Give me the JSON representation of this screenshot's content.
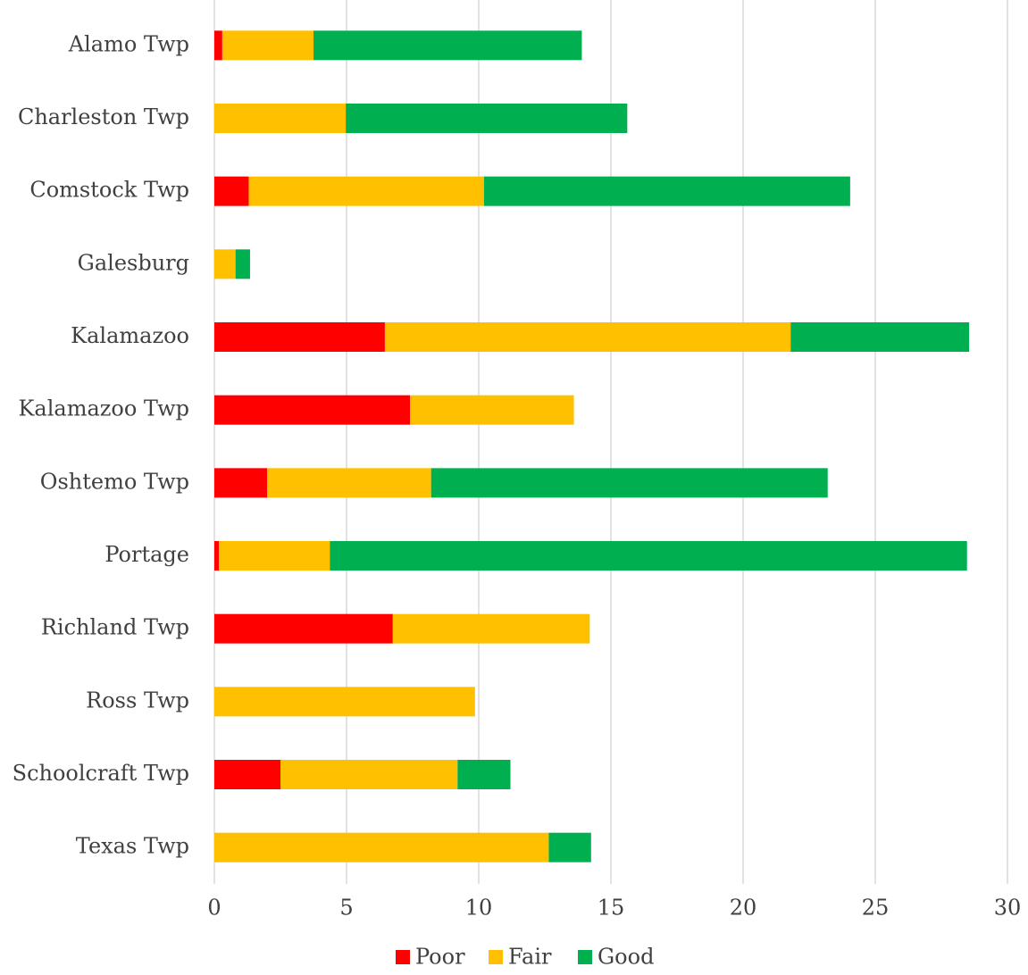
{
  "chart_data": {
    "type": "stacked_bar_horizontal",
    "categories": [
      "Alamo Twp",
      "Charleston Twp",
      "Comstock Twp",
      "Galesburg",
      "Kalamazoo",
      "Kalamazoo Twp",
      "Oshtemo Twp",
      "Portage",
      "Richland Twp",
      "Ross Twp",
      "Schoolcraft Twp",
      "Texas Twp"
    ],
    "series": [
      {
        "name": "Poor",
        "color": "#ff0000",
        "values": [
          0.3,
          0,
          1.3,
          0,
          6.45,
          7.4,
          2.0,
          0.17,
          6.75,
          0,
          2.5,
          0
        ]
      },
      {
        "name": "Fair",
        "color": "#ffc000",
        "values": [
          3.45,
          4.97,
          8.9,
          0.8,
          15.35,
          6.2,
          6.2,
          4.2,
          7.45,
          9.86,
          6.7,
          12.65
        ]
      },
      {
        "name": "Good",
        "color": "#00b050",
        "values": [
          10.15,
          10.65,
          13.85,
          0.55,
          6.75,
          0,
          15.0,
          24.1,
          0,
          0,
          2.0,
          1.6
        ]
      }
    ],
    "xlim": [
      0,
      30
    ],
    "xticks": [
      0,
      5,
      10,
      15,
      20,
      25,
      30
    ],
    "grid": true,
    "legend": "bottom"
  }
}
